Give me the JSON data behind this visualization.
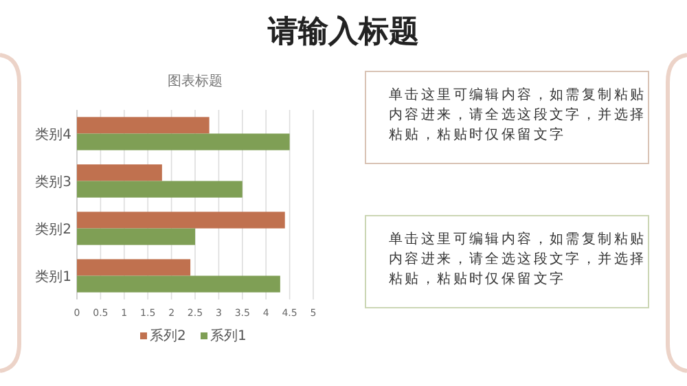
{
  "chart_data": [
    {
      "type": "bar",
      "orientation": "horizontal",
      "title": "图表标题",
      "categories": [
        "类别4",
        "类别3",
        "类别2",
        "类别1"
      ],
      "series": [
        {
          "name": "系列2",
          "color": "#c0714f",
          "values": [
            2.8,
            1.8,
            4.4,
            2.4
          ]
        },
        {
          "name": "系列1",
          "color": "#7f9f55",
          "values": [
            4.5,
            3.5,
            2.5,
            4.3
          ]
        }
      ],
      "xlim": [
        0,
        5
      ],
      "xticks": [
        0,
        0.5,
        1,
        1.5,
        2,
        2.5,
        3,
        3.5,
        4,
        4.5,
        5
      ],
      "grid": "x",
      "legend": "bottom"
    },
    {
      "type": "other",
      "title": "请输入标题",
      "annotations": [
        "单击这里可编辑内容，如需复制粘贴内容进来，请全选这段文字，并选择粘贴，粘贴时仅保留文字",
        "单击这里可编辑内容，如需复制粘贴内容进来，请全选这段文字，并选择粘贴，粘贴时仅保留文字"
      ]
    }
  ]
}
